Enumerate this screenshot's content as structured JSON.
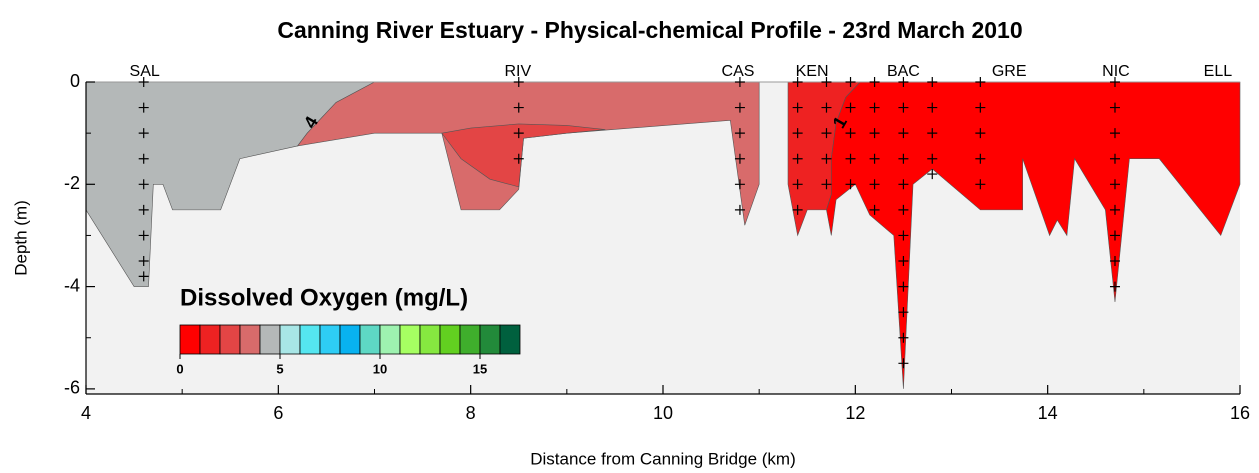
{
  "chart_data": {
    "type": "contour",
    "title": "Canning River Estuary - Physical-chemical Profile - 23rd March 2010",
    "xlabel": "Distance from Canning Bridge (km)",
    "ylabel": "Depth (m)",
    "xlim": [
      4,
      16
    ],
    "ylim": [
      -6.1,
      0
    ],
    "xticks": [
      4,
      6,
      8,
      10,
      12,
      14,
      16
    ],
    "xminorticks": [
      5,
      7,
      9,
      11,
      13,
      15
    ],
    "yticks": [
      0,
      -2,
      -4,
      -6
    ],
    "yminorticks": [
      -1,
      -3,
      -5
    ],
    "background": "#f2f2f2",
    "stations": {
      "names": [
        "SAL",
        "RIV",
        "CAS",
        "KEN",
        "BAC",
        "GRE",
        "NIC",
        "ELL"
      ],
      "x": [
        4.61,
        8.49,
        10.78,
        11.55,
        12.5,
        13.6,
        14.71,
        15.77
      ]
    },
    "regions": [
      {
        "color": "#b4b8b8",
        "x": [
          4,
          7,
          6.6,
          6.3,
          6.2,
          5.6,
          5.4,
          4.9,
          4.8,
          4.7,
          4.65,
          4.5,
          4
        ],
        "y": [
          0,
          0,
          -0.4,
          -1,
          -1.25,
          -1.5,
          -2.5,
          -2.5,
          -2,
          -2,
          -4,
          -4,
          -2.5
        ]
      },
      {
        "color": "#d86b6b",
        "x": [
          7,
          11,
          11,
          10.85,
          10.7,
          9,
          8.55,
          8.5,
          8.3,
          7.9,
          7.7,
          7,
          6.2,
          6.3,
          6.6
        ],
        "y": [
          0,
          0,
          -2,
          -2.8,
          -0.75,
          -1,
          -1.1,
          -2.1,
          -2.5,
          -2.5,
          -1,
          -1,
          -1.25,
          -1,
          -0.4
        ]
      },
      {
        "color": "#e34545",
        "x": [
          7.7,
          8.0,
          8.5,
          9.0,
          9.4,
          9,
          8.55,
          8.5,
          8.2,
          7.9
        ],
        "y": [
          -1,
          -0.9,
          -0.82,
          -0.85,
          -0.93,
          -1,
          -1.1,
          -2.05,
          -1.9,
          -1.5
        ]
      },
      {
        "color": "#ee2222",
        "x": [
          11.3,
          12.05,
          11.9,
          11.8,
          11.75,
          11.75,
          11.7,
          11.65,
          11.5,
          11.4,
          11.3
        ],
        "y": [
          0,
          0,
          -0.3,
          -0.8,
          -1.5,
          -2.2,
          -2.5,
          -2.5,
          -2.5,
          -3,
          -2
        ]
      },
      {
        "color": "#ff0000",
        "x": [
          12.05,
          16,
          16,
          15.8,
          15.16,
          14.85,
          14.7,
          14.6,
          14.28,
          14.2,
          14.1,
          14.02,
          13.74,
          13.74,
          13.3,
          12.8,
          12.6,
          12.5,
          12.4,
          12.15,
          12,
          11.8,
          11.75,
          11.7,
          11.75,
          11.75,
          11.8,
          11.9
        ],
        "y": [
          0,
          0,
          -2,
          -3,
          -1.5,
          -1.5,
          -4.3,
          -2.5,
          -1.5,
          -3,
          -2.7,
          -3,
          -1.5,
          -2.5,
          -2.5,
          -1.7,
          -2,
          -6,
          -3,
          -2.6,
          -2,
          -2.3,
          -3,
          -2.5,
          -2.2,
          -1.5,
          -0.8,
          -0.3
        ]
      }
    ],
    "contour_labels": [
      {
        "text": "4",
        "x": 6.35,
        "y": -0.8
      },
      {
        "text": "1",
        "x": 11.85,
        "y": -0.8
      }
    ],
    "profiles": [
      {
        "x": 4.6,
        "y": [
          0,
          -0.5,
          -1,
          -1.5,
          -2,
          -2.5,
          -3,
          -3.5,
          -3.8
        ]
      },
      {
        "x": 8.5,
        "y": [
          0,
          -0.5,
          -1,
          -1.5
        ]
      },
      {
        "x": 10.8,
        "y": [
          0,
          -0.5,
          -1,
          -1.5,
          -2,
          -2.5
        ]
      },
      {
        "x": 11.4,
        "y": [
          0,
          -0.5,
          -1,
          -1.5,
          -2,
          -2.5
        ]
      },
      {
        "x": 11.7,
        "y": [
          0,
          -0.5,
          -1,
          -1.5,
          -2
        ]
      },
      {
        "x": 11.95,
        "y": [
          0,
          -0.5,
          -1,
          -1.5,
          -2
        ]
      },
      {
        "x": 12.2,
        "y": [
          0,
          -0.5,
          -1,
          -1.5,
          -2,
          -2.5
        ]
      },
      {
        "x": 12.5,
        "y": [
          0,
          -0.5,
          -1,
          -1.5,
          -2,
          -2.5,
          -3,
          -3.5,
          -4,
          -4.5,
          -5,
          -5.5
        ]
      },
      {
        "x": 12.8,
        "y": [
          0,
          -0.5,
          -1,
          -1.5,
          -1.8
        ]
      },
      {
        "x": 13.3,
        "y": [
          0,
          -0.5,
          -1,
          -1.5,
          -2
        ]
      },
      {
        "x": 14.7,
        "y": [
          0,
          -0.5,
          -1,
          -1.5,
          -2,
          -2.5,
          -3,
          -3.5,
          -4
        ]
      }
    ],
    "colorbar": {
      "title": "Dissolved Oxygen (mg/L)",
      "clim": [
        0,
        17
      ],
      "ticks": [
        0,
        5,
        10,
        15
      ],
      "colors": [
        "#ff0000",
        "#ee2222",
        "#e34545",
        "#d86b6b",
        "#b4b8b8",
        "#a8e6e6",
        "#55e6f0",
        "#2ecdf5",
        "#08b2f0",
        "#5ed8c4",
        "#9ef2b0",
        "#a6ff62",
        "#86e840",
        "#62d020",
        "#3fae2c",
        "#228a3a",
        "#00603e"
      ]
    }
  }
}
